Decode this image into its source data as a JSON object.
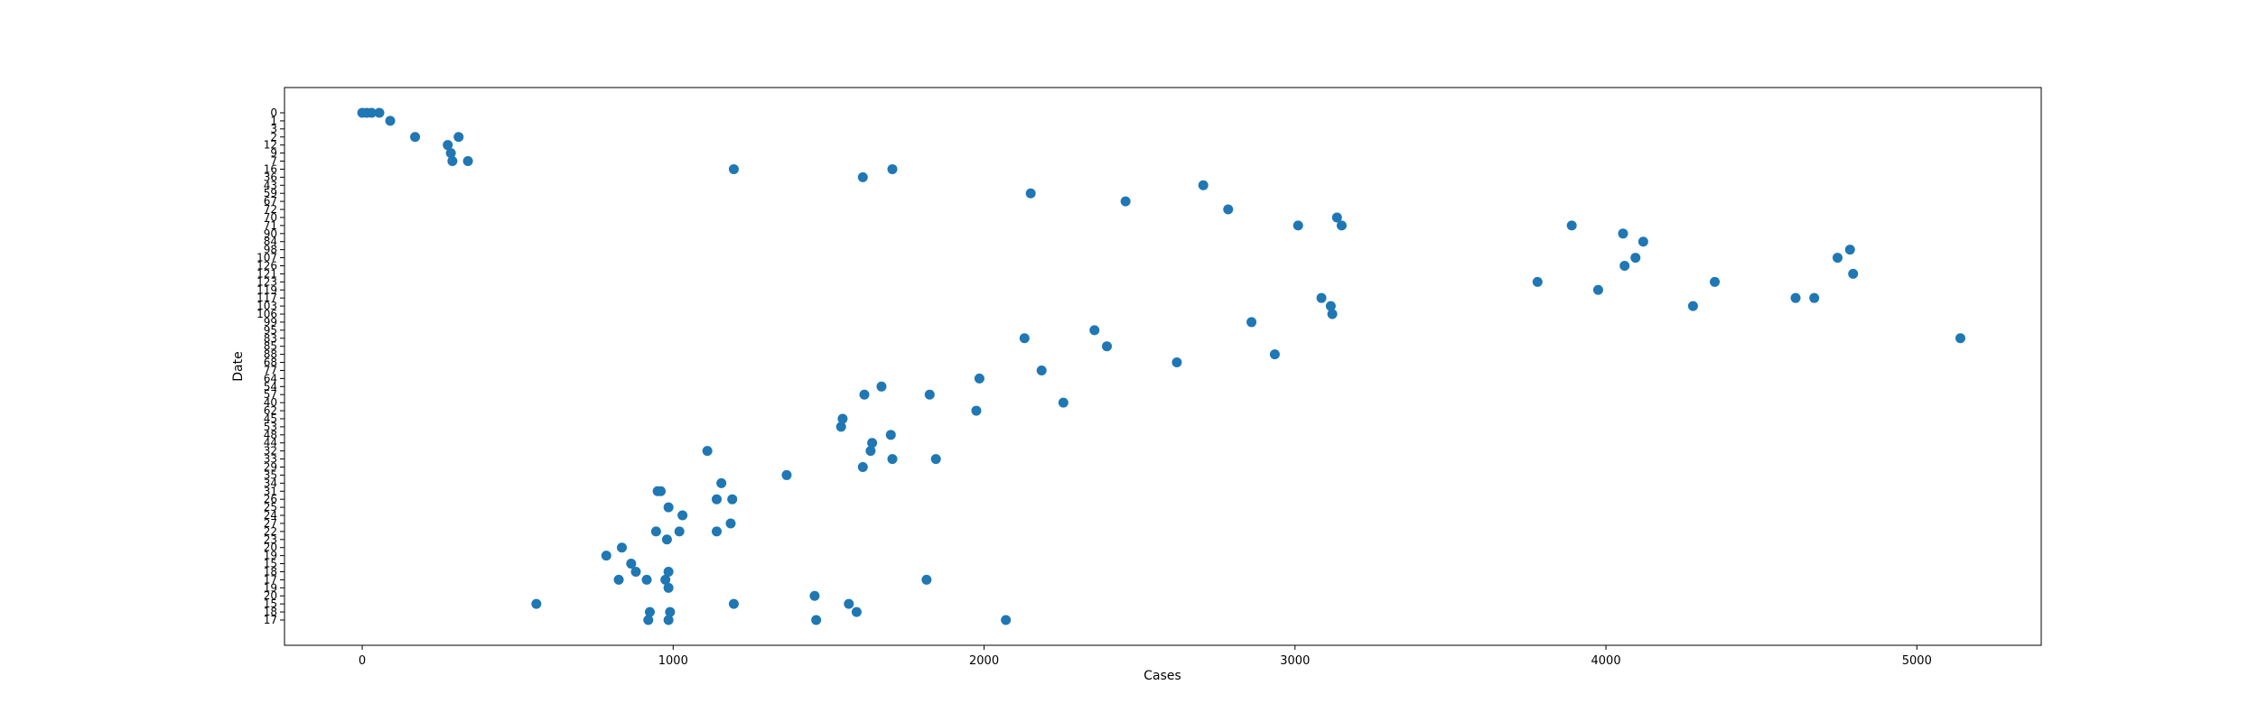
{
  "chart_data": {
    "type": "scatter",
    "xlabel": "Cases",
    "ylabel": "Date",
    "xlim": [
      -250,
      5400
    ],
    "x_ticks": [
      0,
      1000,
      2000,
      3000,
      4000,
      5000
    ],
    "grid": false,
    "marker_color": "#1f77b4",
    "y_categories": [
      "0",
      "1",
      "3",
      "2",
      "12",
      "9",
      "7",
      "16",
      "36",
      "43",
      "59",
      "67",
      "72",
      "70",
      "71",
      "90",
      "84",
      "98",
      "107",
      "126",
      "121",
      "123",
      "119",
      "117",
      "103",
      "106",
      "99",
      "95",
      "83",
      "85",
      "88",
      "68",
      "77",
      "64",
      "54",
      "57",
      "40",
      "62",
      "45",
      "53",
      "48",
      "44",
      "32",
      "33",
      "29",
      "35",
      "34",
      "31",
      "26",
      "25",
      "24",
      "27",
      "22",
      "23",
      "20",
      "19",
      "15",
      "18",
      "17"
    ],
    "points": [
      {
        "x": 0,
        "y": "0"
      },
      {
        "x": 15,
        "y": "0"
      },
      {
        "x": 30,
        "y": "0"
      },
      {
        "x": 55,
        "y": "0"
      },
      {
        "x": 90,
        "y": "1"
      },
      {
        "x": 170,
        "y": "2"
      },
      {
        "x": 310,
        "y": "2"
      },
      {
        "x": 275,
        "y": "12"
      },
      {
        "x": 285,
        "y": "9"
      },
      {
        "x": 290,
        "y": "7"
      },
      {
        "x": 340,
        "y": "7"
      },
      {
        "x": 1195,
        "y": "16"
      },
      {
        "x": 1705,
        "y": "16"
      },
      {
        "x": 1610,
        "y": "36"
      },
      {
        "x": 2705,
        "y": "43"
      },
      {
        "x": 2150,
        "y": "59"
      },
      {
        "x": 2455,
        "y": "67"
      },
      {
        "x": 2785,
        "y": "72"
      },
      {
        "x": 3135,
        "y": "70"
      },
      {
        "x": 3150,
        "y": "71"
      },
      {
        "x": 3010,
        "y": "71"
      },
      {
        "x": 3890,
        "y": "71"
      },
      {
        "x": 4120,
        "y": "84"
      },
      {
        "x": 4055,
        "y": "90"
      },
      {
        "x": 4785,
        "y": "98"
      },
      {
        "x": 4745,
        "y": "107"
      },
      {
        "x": 4095,
        "y": "107"
      },
      {
        "x": 4060,
        "y": "126"
      },
      {
        "x": 4795,
        "y": "121"
      },
      {
        "x": 4350,
        "y": "123"
      },
      {
        "x": 3780,
        "y": "123"
      },
      {
        "x": 3975,
        "y": "119"
      },
      {
        "x": 4670,
        "y": "117"
      },
      {
        "x": 4610,
        "y": "117"
      },
      {
        "x": 3085,
        "y": "117"
      },
      {
        "x": 3115,
        "y": "103"
      },
      {
        "x": 4280,
        "y": "103"
      },
      {
        "x": 3120,
        "y": "106"
      },
      {
        "x": 2860,
        "y": "99"
      },
      {
        "x": 2355,
        "y": "95"
      },
      {
        "x": 2130,
        "y": "83"
      },
      {
        "x": 5140,
        "y": "83"
      },
      {
        "x": 2395,
        "y": "85"
      },
      {
        "x": 2935,
        "y": "88"
      },
      {
        "x": 2620,
        "y": "68"
      },
      {
        "x": 2185,
        "y": "77"
      },
      {
        "x": 1985,
        "y": "64"
      },
      {
        "x": 1670,
        "y": "54"
      },
      {
        "x": 1825,
        "y": "57"
      },
      {
        "x": 1615,
        "y": "57"
      },
      {
        "x": 2255,
        "y": "40"
      },
      {
        "x": 1975,
        "y": "62"
      },
      {
        "x": 1545,
        "y": "45"
      },
      {
        "x": 1540,
        "y": "53"
      },
      {
        "x": 1700,
        "y": "48"
      },
      {
        "x": 1640,
        "y": "44"
      },
      {
        "x": 1635,
        "y": "32"
      },
      {
        "x": 1110,
        "y": "32"
      },
      {
        "x": 1705,
        "y": "33"
      },
      {
        "x": 1845,
        "y": "33"
      },
      {
        "x": 1610,
        "y": "29"
      },
      {
        "x": 1365,
        "y": "35"
      },
      {
        "x": 1155,
        "y": "34"
      },
      {
        "x": 950,
        "y": "31"
      },
      {
        "x": 960,
        "y": "31"
      },
      {
        "x": 1140,
        "y": "26"
      },
      {
        "x": 1190,
        "y": "26"
      },
      {
        "x": 985,
        "y": "25"
      },
      {
        "x": 1030,
        "y": "24"
      },
      {
        "x": 1185,
        "y": "27"
      },
      {
        "x": 945,
        "y": "22"
      },
      {
        "x": 1020,
        "y": "22"
      },
      {
        "x": 1140,
        "y": "22"
      },
      {
        "x": 980,
        "y": "23"
      },
      {
        "x": 835,
        "y": "20"
      },
      {
        "x": 785,
        "y": "19"
      },
      {
        "x": 865,
        "y": "15"
      },
      {
        "x": 880,
        "y": "18"
      },
      {
        "x": 985,
        "y": "18"
      },
      {
        "x": 825,
        "y": "17"
      },
      {
        "x": 915,
        "y": "17"
      },
      {
        "x": 975,
        "y": "17"
      },
      {
        "x": 1815,
        "y": "17"
      }
    ],
    "points_lower": [
      {
        "x": 985,
        "y": "19b"
      },
      {
        "x": 1455,
        "y": "20b"
      },
      {
        "x": 560,
        "y": "15b"
      },
      {
        "x": 1195,
        "y": "15b"
      },
      {
        "x": 1565,
        "y": "15b"
      },
      {
        "x": 1590,
        "y": "18b"
      },
      {
        "x": 925,
        "y": "18b"
      },
      {
        "x": 990,
        "y": "18b"
      },
      {
        "x": 920,
        "y": "17b"
      },
      {
        "x": 985,
        "y": "17b"
      },
      {
        "x": 1460,
        "y": "17b"
      },
      {
        "x": 2070,
        "y": "17b"
      }
    ]
  }
}
